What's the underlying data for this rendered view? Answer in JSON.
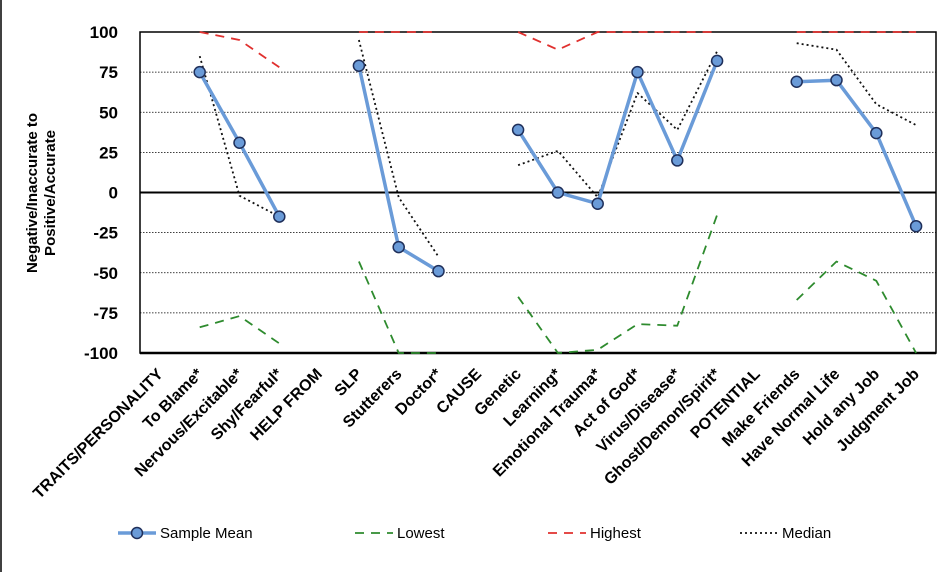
{
  "chart_data": {
    "type": "line",
    "title": "",
    "ylabel_lines": [
      "Negative/Inaccurate to",
      "Positive/Accurate"
    ],
    "xlabel": "",
    "ylim": [
      -100,
      100
    ],
    "yticks": [
      100,
      75,
      50,
      25,
      0,
      -25,
      -50,
      -75,
      -100
    ],
    "grid": true,
    "legend_position": "bottom",
    "categories": [
      "TRAITS/PERSONALITY",
      "To Blame*",
      "Nervous/Excitable*",
      "Shy/Fearful*",
      "HELP FROM",
      "SLP",
      "Stutterers",
      "Doctor*",
      "CAUSE",
      "Genetic",
      "Learning*",
      "Emotional Trauma*",
      "Act of God*",
      "Virus/Disease*",
      "Ghost/Demon/Spirit*",
      "POTENTIAL",
      "Make Friends",
      "Have Normal Life",
      "Hold any Job",
      "Judgment Job"
    ],
    "series": [
      {
        "name": "Sample Mean",
        "color": "#6a9bd8",
        "style": "solid-marker",
        "values": [
          null,
          75,
          31,
          -15,
          null,
          79,
          -34,
          -49,
          null,
          39,
          0,
          -7,
          75,
          20,
          82,
          null,
          69,
          70,
          37,
          -21
        ]
      },
      {
        "name": "Lowest",
        "color": "#2e8b2e",
        "style": "dashed",
        "values": [
          null,
          -84,
          -77,
          -94,
          null,
          -43,
          -100,
          -100,
          null,
          -65,
          -100,
          -98,
          -82,
          -83,
          -14,
          null,
          -67,
          -43,
          -55,
          -100
        ]
      },
      {
        "name": "Highest",
        "color": "#e0302e",
        "style": "dashed",
        "values": [
          null,
          100,
          95,
          78,
          null,
          100,
          100,
          100,
          null,
          100,
          89,
          100,
          100,
          100,
          100,
          null,
          100,
          100,
          100,
          100
        ]
      },
      {
        "name": "Median",
        "color": "#111111",
        "style": "dotted",
        "values": [
          null,
          85,
          -2,
          -15,
          null,
          95,
          -3,
          -40,
          null,
          17,
          26,
          -3,
          62,
          39,
          88,
          null,
          93,
          89,
          55,
          42
        ]
      }
    ]
  }
}
